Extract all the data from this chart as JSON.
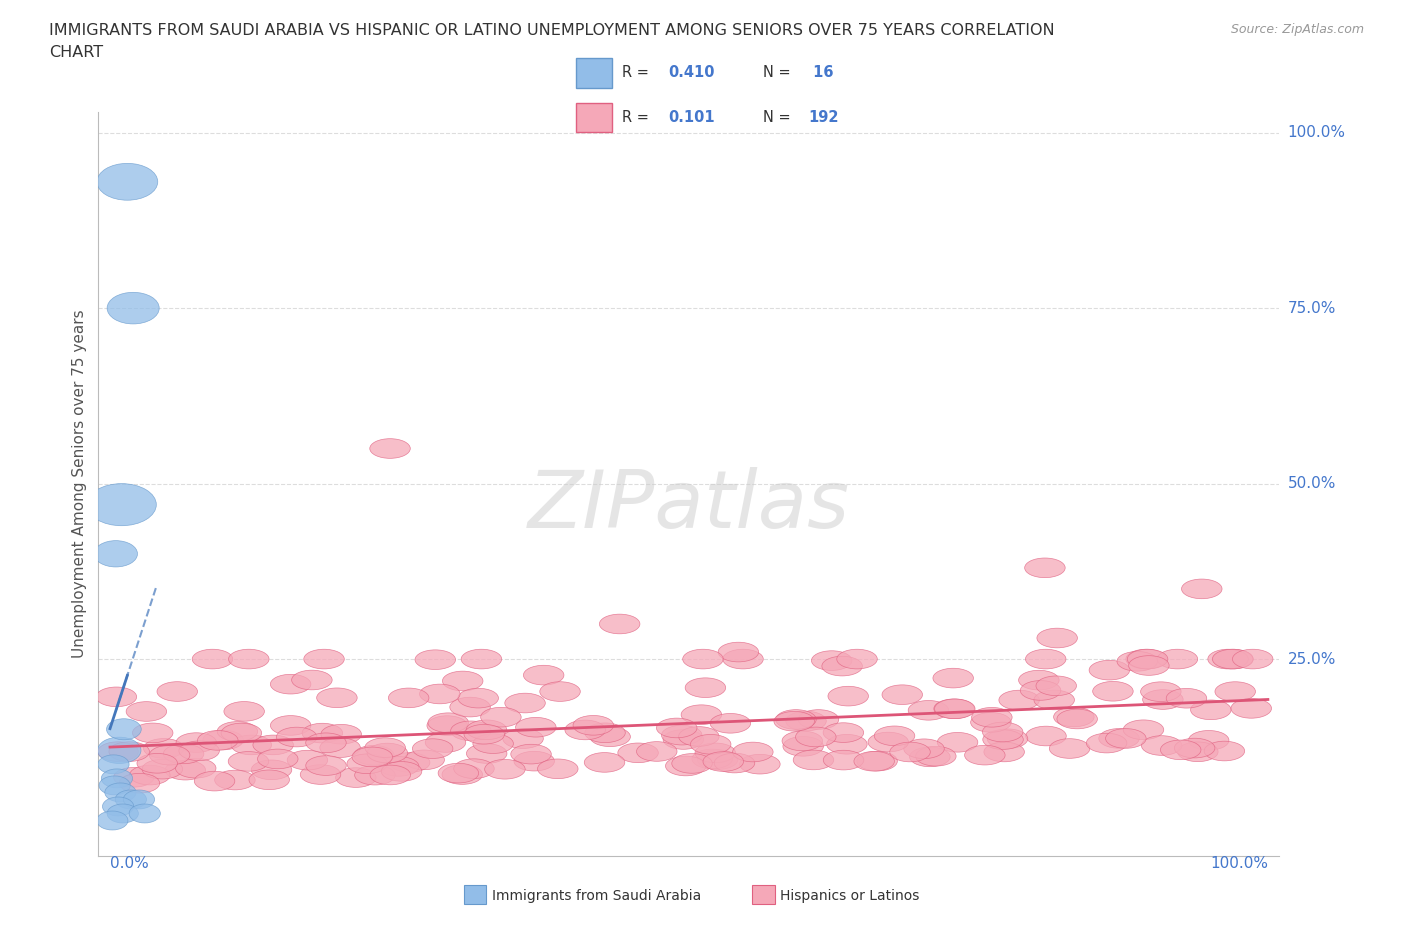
{
  "title_line1": "IMMIGRANTS FROM SAUDI ARABIA VS HISPANIC OR LATINO UNEMPLOYMENT AMONG SENIORS OVER 75 YEARS CORRELATION",
  "title_line2": "CHART",
  "source": "Source: ZipAtlas.com",
  "ylabel": "Unemployment Among Seniors over 75 years",
  "ytick_values": [
    0,
    25,
    50,
    75,
    100
  ],
  "ytick_labels": [
    "0%",
    "25.0%",
    "50.0%",
    "75.0%",
    "100.0%"
  ],
  "xrange": [
    0,
    100
  ],
  "yrange": [
    0,
    100
  ],
  "blue_R": "0.410",
  "blue_N": "16",
  "pink_R": "0.101",
  "pink_N": "192",
  "blue_scatter_x": [
    1.5,
    2.0,
    0.5,
    1.0,
    0.8,
    1.2,
    0.3,
    0.6,
    0.4,
    0.9,
    1.8,
    2.5,
    0.7,
    1.1,
    3.0,
    0.2
  ],
  "blue_scatter_y": [
    93,
    75,
    40,
    47,
    12,
    15,
    10,
    8,
    7,
    6,
    5,
    5,
    4,
    3,
    3,
    2
  ],
  "blue_scatter_sizes_w": [
    3.5,
    3.0,
    2.5,
    4.0,
    2.5,
    2.0,
    1.8,
    1.8,
    1.8,
    1.8,
    1.8,
    1.8,
    1.8,
    1.8,
    1.8,
    1.8
  ],
  "blue_scatter_sizes_h": [
    3.5,
    3.0,
    2.5,
    4.0,
    2.5,
    2.0,
    1.8,
    1.8,
    1.8,
    1.8,
    1.8,
    1.8,
    1.8,
    1.8,
    1.8,
    1.8
  ],
  "watermark": "ZIPatlas",
  "bg_color": "#ffffff",
  "grid_color": "#dddddd",
  "blue_color": "#92bde8",
  "blue_edge_color": "#6699cc",
  "pink_color": "#f5a8b8",
  "pink_edge_color": "#e06080",
  "blue_line_color": "#4477bb",
  "pink_line_color": "#dd5577",
  "axis_label_color": "#4477cc",
  "title_color": "#333333"
}
